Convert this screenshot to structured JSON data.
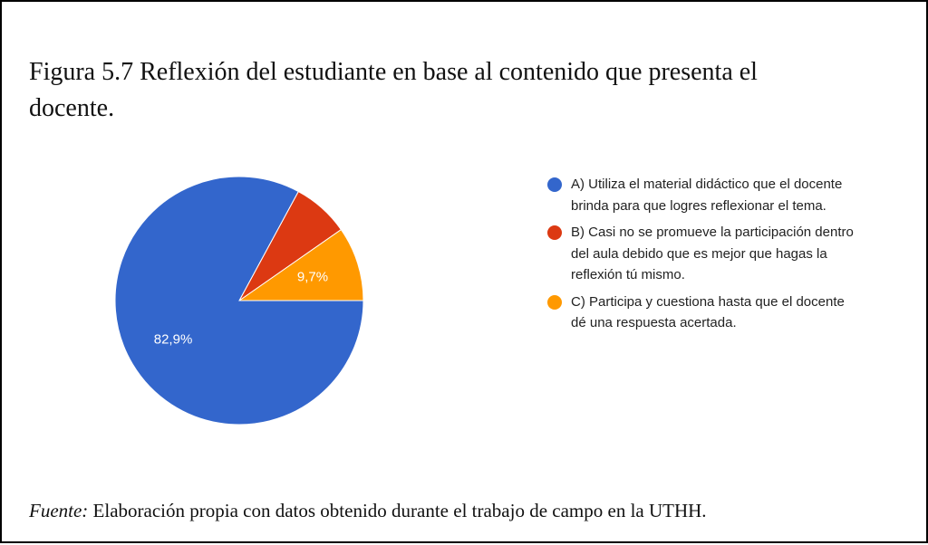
{
  "chart_data": {
    "type": "pie",
    "title": "Figura 5.7 Reflexión del estudiante en base al contenido que presenta el docente.",
    "categories": [
      "A) Utiliza el material didáctico que el docente brinda para que logres reflexionar el tema.",
      "B) Casi no se promueve la participación dentro del aula debido que es mejor que hagas la reflexión tú mismo.",
      "C) Participa y cuestiona hasta que el docente dé una respuesta acertada."
    ],
    "values": [
      82.9,
      7.4,
      9.7
    ],
    "value_labels": [
      "82,9%",
      null,
      "9,7%"
    ],
    "colors": [
      "#3366cc",
      "#dc3912",
      "#ff9900"
    ],
    "legend": "right"
  },
  "source": {
    "label": "Fuente:",
    "text": "Elaboración propia con datos obtenido durante el trabajo de campo en la UTHH."
  }
}
